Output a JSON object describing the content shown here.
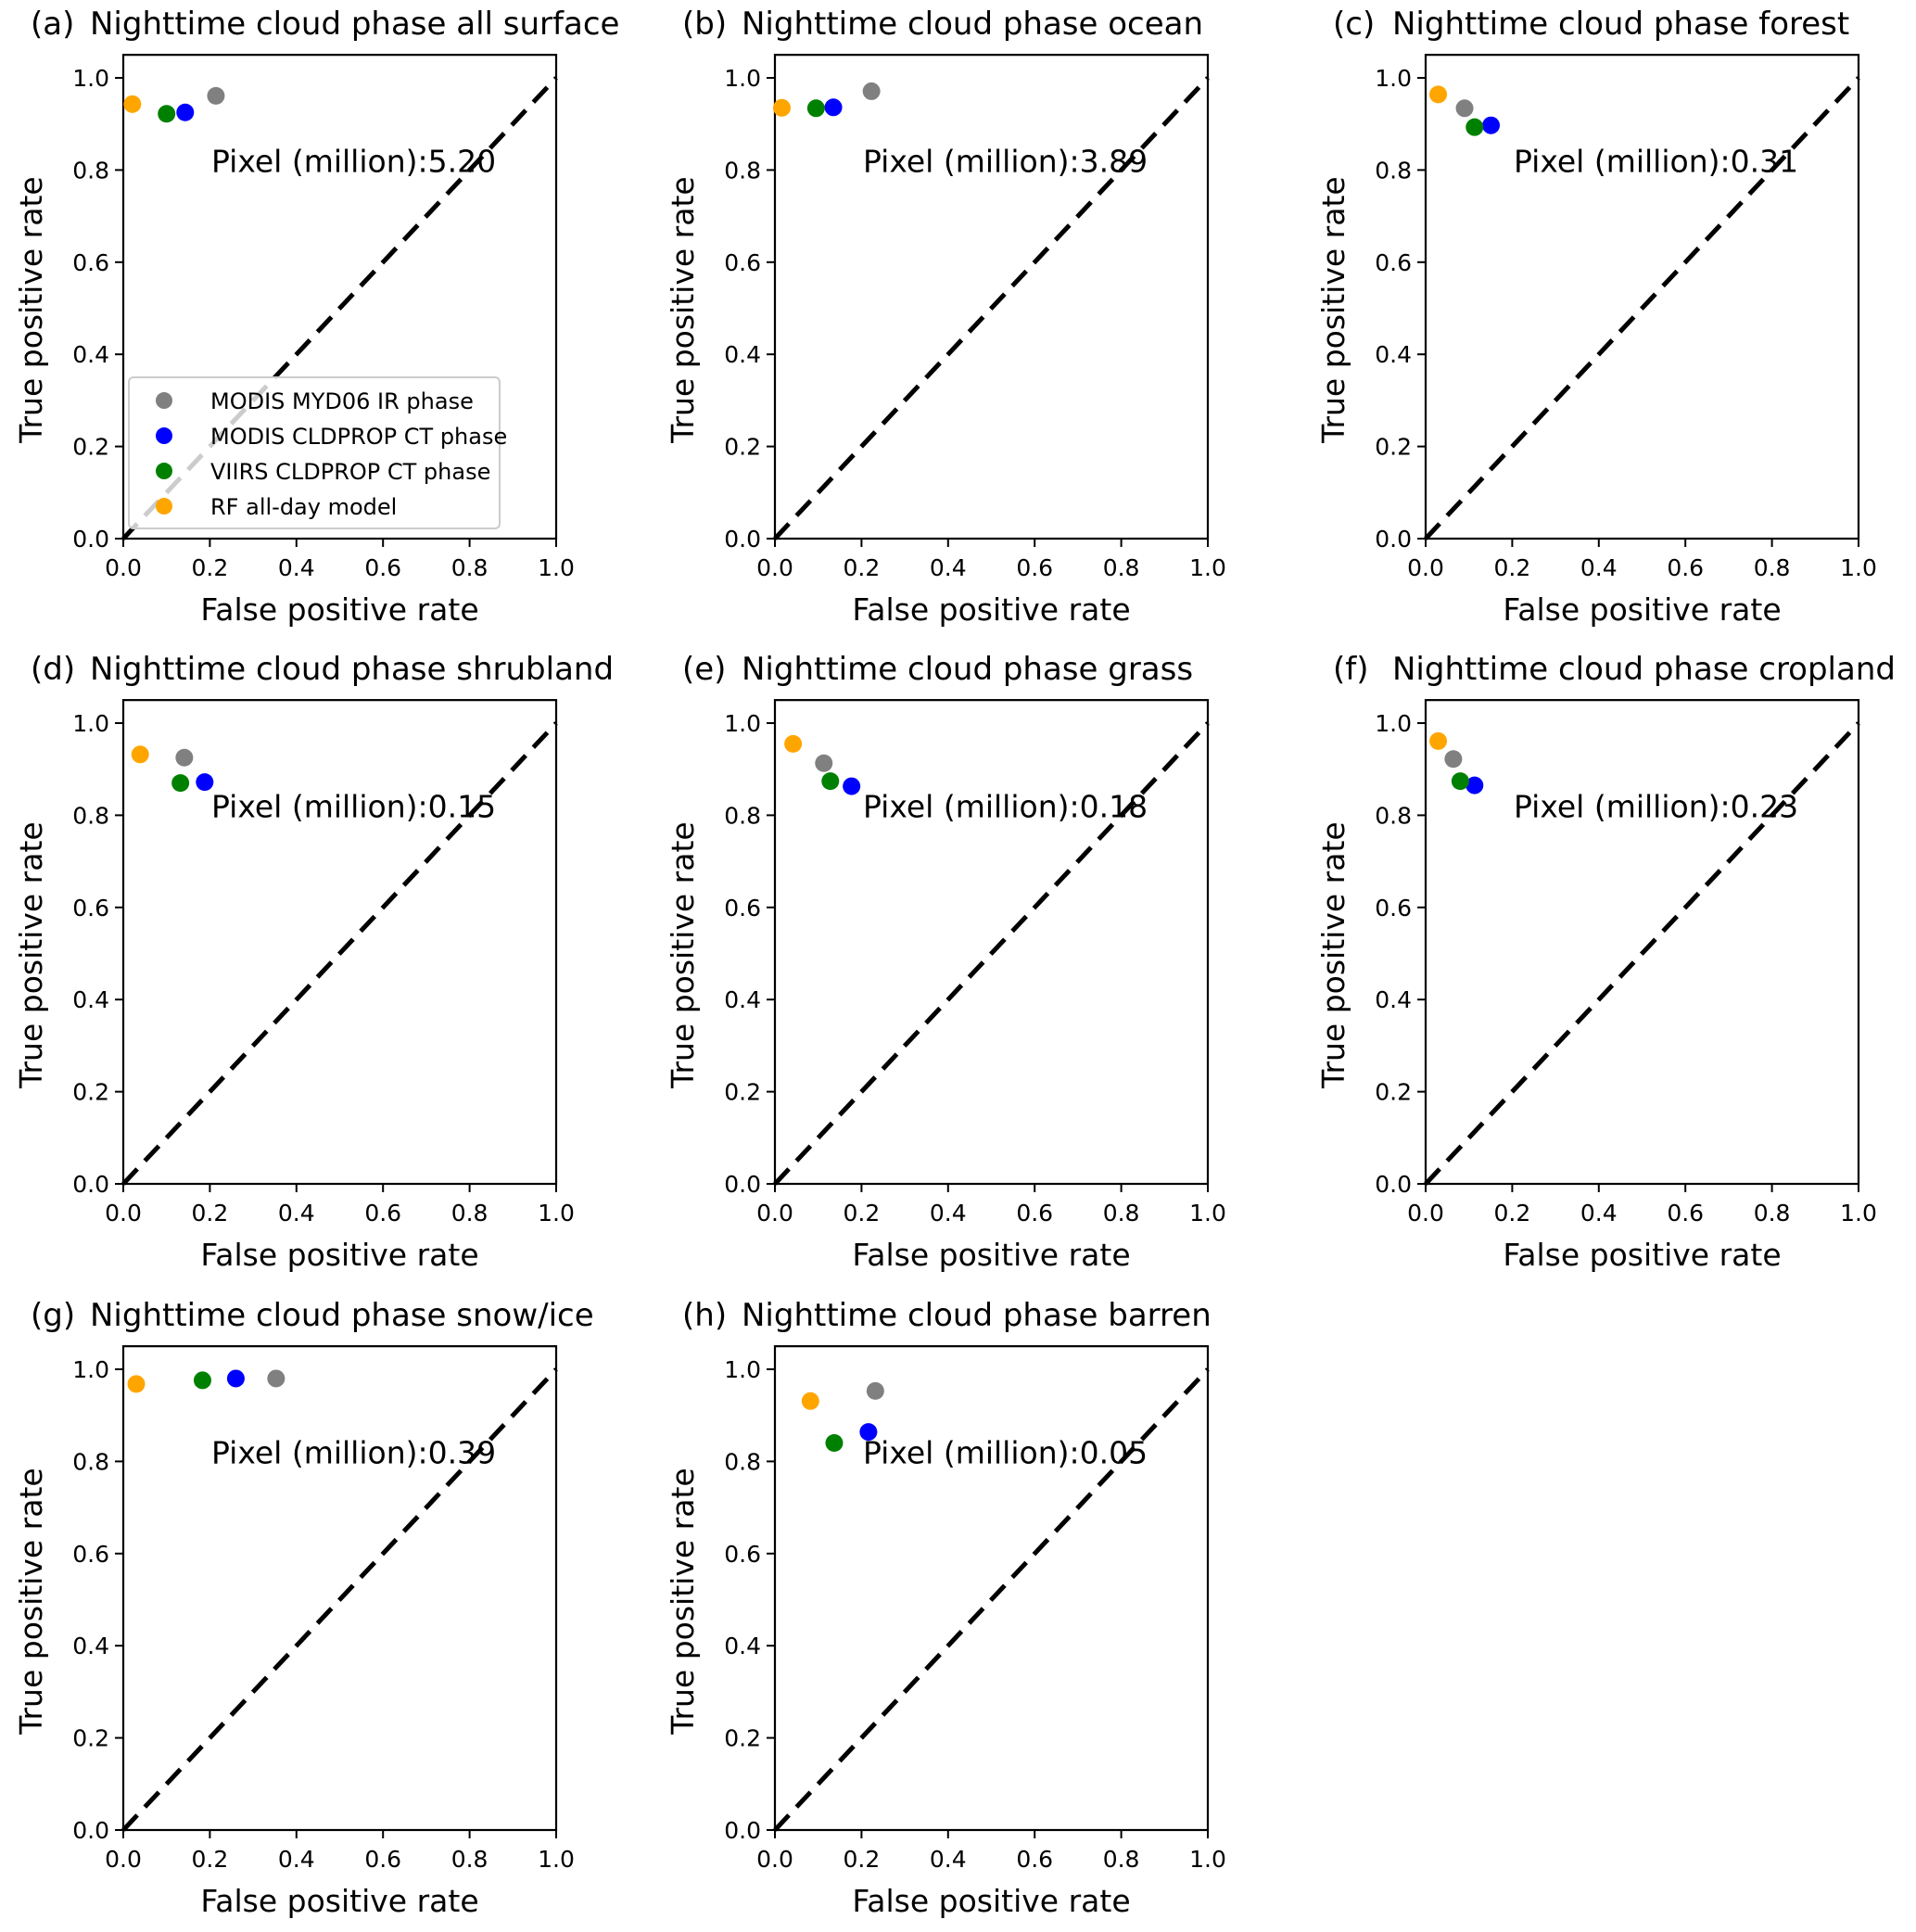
{
  "chart_data": [
    {
      "type": "scatter",
      "panel": "(a)",
      "title": "Nighttime cloud phase all surface",
      "xlabel": "False positive rate",
      "ylabel": "True positive rate",
      "xlim": [
        0.0,
        1.0
      ],
      "ylim": [
        0.0,
        1.05
      ],
      "xticks": [
        "0.0",
        "0.2",
        "0.4",
        "0.6",
        "0.8",
        "1.0"
      ],
      "yticks": [
        "0.0",
        "0.2",
        "0.4",
        "0.6",
        "0.8",
        "1.0"
      ],
      "annotation": "Pixel (million):5.20",
      "reference_line": {
        "style": "dashed",
        "from": [
          0,
          0
        ],
        "to": [
          1,
          1
        ]
      },
      "legend": "lower-left",
      "series": [
        {
          "name": "MODIS MYD06 IR phase",
          "color": "#808080",
          "x": 0.214,
          "y": 0.961
        },
        {
          "name": "MODIS CLDPROP CT phase",
          "color": "#0000ff",
          "x": 0.143,
          "y": 0.925
        },
        {
          "name": "VIIRS CLDPROP CT phase",
          "color": "#008000",
          "x": 0.1,
          "y": 0.922
        },
        {
          "name": "RF all-day model",
          "color": "#ffa500",
          "x": 0.021,
          "y": 0.943
        }
      ]
    },
    {
      "type": "scatter",
      "panel": "(b)",
      "title": "Nighttime cloud phase ocean",
      "xlabel": "False positive rate",
      "ylabel": "True positive rate",
      "xlim": [
        0.0,
        1.0
      ],
      "ylim": [
        0.0,
        1.05
      ],
      "xticks": [
        "0.0",
        "0.2",
        "0.4",
        "0.6",
        "0.8",
        "1.0"
      ],
      "yticks": [
        "0.0",
        "0.2",
        "0.4",
        "0.6",
        "0.8",
        "1.0"
      ],
      "annotation": "Pixel (million):3.89",
      "reference_line": {
        "style": "dashed",
        "from": [
          0,
          0
        ],
        "to": [
          1,
          1
        ]
      },
      "series": [
        {
          "name": "MODIS MYD06 IR phase",
          "color": "#808080",
          "x": 0.223,
          "y": 0.971
        },
        {
          "name": "MODIS CLDPROP CT phase",
          "color": "#0000ff",
          "x": 0.135,
          "y": 0.936
        },
        {
          "name": "VIIRS CLDPROP CT phase",
          "color": "#008000",
          "x": 0.095,
          "y": 0.934
        },
        {
          "name": "RF all-day model",
          "color": "#ffa500",
          "x": 0.016,
          "y": 0.935
        }
      ]
    },
    {
      "type": "scatter",
      "panel": "(c)",
      "title": "Nighttime cloud phase forest",
      "xlabel": "False positive rate",
      "ylabel": "True positive rate",
      "xlim": [
        0.0,
        1.0
      ],
      "ylim": [
        0.0,
        1.05
      ],
      "xticks": [
        "0.0",
        "0.2",
        "0.4",
        "0.6",
        "0.8",
        "1.0"
      ],
      "yticks": [
        "0.0",
        "0.2",
        "0.4",
        "0.6",
        "0.8",
        "1.0"
      ],
      "annotation": "Pixel (million):0.31",
      "reference_line": {
        "style": "dashed",
        "from": [
          0,
          0
        ],
        "to": [
          1,
          1
        ]
      },
      "series": [
        {
          "name": "MODIS MYD06 IR phase",
          "color": "#808080",
          "x": 0.09,
          "y": 0.934
        },
        {
          "name": "MODIS CLDPROP CT phase",
          "color": "#0000ff",
          "x": 0.151,
          "y": 0.897
        },
        {
          "name": "VIIRS CLDPROP CT phase",
          "color": "#008000",
          "x": 0.113,
          "y": 0.893
        },
        {
          "name": "RF all-day model",
          "color": "#ffa500",
          "x": 0.029,
          "y": 0.964
        }
      ]
    },
    {
      "type": "scatter",
      "panel": "(d)",
      "title": "Nighttime cloud phase shrubland",
      "xlabel": "False positive rate",
      "ylabel": "True positive rate",
      "xlim": [
        0.0,
        1.0
      ],
      "ylim": [
        0.0,
        1.05
      ],
      "xticks": [
        "0.0",
        "0.2",
        "0.4",
        "0.6",
        "0.8",
        "1.0"
      ],
      "yticks": [
        "0.0",
        "0.2",
        "0.4",
        "0.6",
        "0.8",
        "1.0"
      ],
      "annotation": "Pixel (million):0.15",
      "reference_line": {
        "style": "dashed",
        "from": [
          0,
          0
        ],
        "to": [
          1,
          1
        ]
      },
      "series": [
        {
          "name": "MODIS MYD06 IR phase",
          "color": "#808080",
          "x": 0.141,
          "y": 0.925
        },
        {
          "name": "MODIS CLDPROP CT phase",
          "color": "#0000ff",
          "x": 0.188,
          "y": 0.872
        },
        {
          "name": "VIIRS CLDPROP CT phase",
          "color": "#008000",
          "x": 0.132,
          "y": 0.87
        },
        {
          "name": "RF all-day model",
          "color": "#ffa500",
          "x": 0.039,
          "y": 0.932
        }
      ]
    },
    {
      "type": "scatter",
      "panel": "(e)",
      "title": "Nighttime cloud phase grass",
      "xlabel": "False positive rate",
      "ylabel": "True positive rate",
      "xlim": [
        0.0,
        1.0
      ],
      "ylim": [
        0.0,
        1.05
      ],
      "xticks": [
        "0.0",
        "0.2",
        "0.4",
        "0.6",
        "0.8",
        "1.0"
      ],
      "yticks": [
        "0.0",
        "0.2",
        "0.4",
        "0.6",
        "0.8",
        "1.0"
      ],
      "annotation": "Pixel (million):0.18",
      "reference_line": {
        "style": "dashed",
        "from": [
          0,
          0
        ],
        "to": [
          1,
          1
        ]
      },
      "series": [
        {
          "name": "MODIS MYD06 IR phase",
          "color": "#808080",
          "x": 0.113,
          "y": 0.913
        },
        {
          "name": "MODIS CLDPROP CT phase",
          "color": "#0000ff",
          "x": 0.177,
          "y": 0.863
        },
        {
          "name": "VIIRS CLDPROP CT phase",
          "color": "#008000",
          "x": 0.128,
          "y": 0.874
        },
        {
          "name": "RF all-day model",
          "color": "#ffa500",
          "x": 0.042,
          "y": 0.955
        }
      ]
    },
    {
      "type": "scatter",
      "panel": "(f)",
      "title": "Nighttime cloud phase cropland",
      "xlabel": "False positive rate",
      "ylabel": "True positive rate",
      "xlim": [
        0.0,
        1.0
      ],
      "ylim": [
        0.0,
        1.05
      ],
      "xticks": [
        "0.0",
        "0.2",
        "0.4",
        "0.6",
        "0.8",
        "1.0"
      ],
      "yticks": [
        "0.0",
        "0.2",
        "0.4",
        "0.6",
        "0.8",
        "1.0"
      ],
      "annotation": "Pixel (million):0.23",
      "reference_line": {
        "style": "dashed",
        "from": [
          0,
          0
        ],
        "to": [
          1,
          1
        ]
      },
      "series": [
        {
          "name": "MODIS MYD06 IR phase",
          "color": "#808080",
          "x": 0.064,
          "y": 0.922
        },
        {
          "name": "MODIS CLDPROP CT phase",
          "color": "#0000ff",
          "x": 0.113,
          "y": 0.865
        },
        {
          "name": "VIIRS CLDPROP CT phase",
          "color": "#008000",
          "x": 0.08,
          "y": 0.874
        },
        {
          "name": "RF all-day model",
          "color": "#ffa500",
          "x": 0.029,
          "y": 0.961
        }
      ]
    },
    {
      "type": "scatter",
      "panel": "(g)",
      "title": "Nighttime cloud phase snow/ice",
      "xlabel": "False positive rate",
      "ylabel": "True positive rate",
      "xlim": [
        0.0,
        1.0
      ],
      "ylim": [
        0.0,
        1.05
      ],
      "xticks": [
        "0.0",
        "0.2",
        "0.4",
        "0.6",
        "0.8",
        "1.0"
      ],
      "yticks": [
        "0.0",
        "0.2",
        "0.4",
        "0.6",
        "0.8",
        "1.0"
      ],
      "annotation": "Pixel (million):0.39",
      "reference_line": {
        "style": "dashed",
        "from": [
          0,
          0
        ],
        "to": [
          1,
          1
        ]
      },
      "series": [
        {
          "name": "MODIS MYD06 IR phase",
          "color": "#808080",
          "x": 0.353,
          "y": 0.98
        },
        {
          "name": "MODIS CLDPROP CT phase",
          "color": "#0000ff",
          "x": 0.26,
          "y": 0.98
        },
        {
          "name": "VIIRS CLDPROP CT phase",
          "color": "#008000",
          "x": 0.183,
          "y": 0.976
        },
        {
          "name": "RF all-day model",
          "color": "#ffa500",
          "x": 0.03,
          "y": 0.968
        }
      ]
    },
    {
      "type": "scatter",
      "panel": "(h)",
      "title": "Nighttime cloud phase barren",
      "xlabel": "False positive rate",
      "ylabel": "True positive rate",
      "xlim": [
        0.0,
        1.0
      ],
      "ylim": [
        0.0,
        1.05
      ],
      "xticks": [
        "0.0",
        "0.2",
        "0.4",
        "0.6",
        "0.8",
        "1.0"
      ],
      "yticks": [
        "0.0",
        "0.2",
        "0.4",
        "0.6",
        "0.8",
        "1.0"
      ],
      "annotation": "Pixel (million):0.05",
      "reference_line": {
        "style": "dashed",
        "from": [
          0,
          0
        ],
        "to": [
          1,
          1
        ]
      },
      "series": [
        {
          "name": "MODIS MYD06 IR phase",
          "color": "#808080",
          "x": 0.232,
          "y": 0.953
        },
        {
          "name": "MODIS CLDPROP CT phase",
          "color": "#0000ff",
          "x": 0.216,
          "y": 0.864
        },
        {
          "name": "VIIRS CLDPROP CT phase",
          "color": "#008000",
          "x": 0.137,
          "y": 0.84
        },
        {
          "name": "RF all-day model",
          "color": "#ffa500",
          "x": 0.082,
          "y": 0.931
        }
      ]
    }
  ]
}
